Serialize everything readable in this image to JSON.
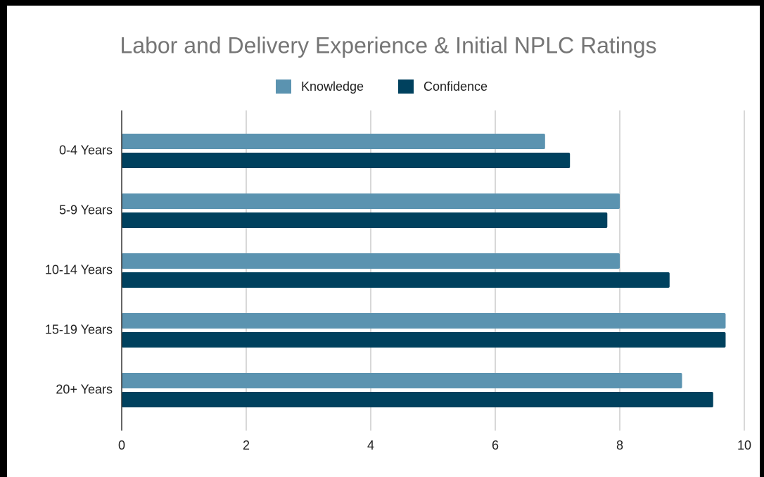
{
  "chart_data": {
    "type": "bar",
    "orientation": "horizontal",
    "title": "Labor and Delivery Experience & Initial NPLC Ratings",
    "categories": [
      "0-4 Years",
      "5-9 Years",
      "10-14 Years",
      "15-19 Years",
      "20+ Years"
    ],
    "series": [
      {
        "name": "Knowledge",
        "color": "#5b93b0",
        "values": [
          6.8,
          8.0,
          8.0,
          9.7,
          9.0
        ]
      },
      {
        "name": "Confidence",
        "color": "#00415e",
        "values": [
          7.2,
          7.8,
          8.8,
          9.7,
          9.5
        ]
      }
    ],
    "xlim": [
      0,
      10
    ],
    "xticks": [
      0,
      2,
      4,
      6,
      8,
      10
    ],
    "grid": true,
    "legend": "top"
  }
}
